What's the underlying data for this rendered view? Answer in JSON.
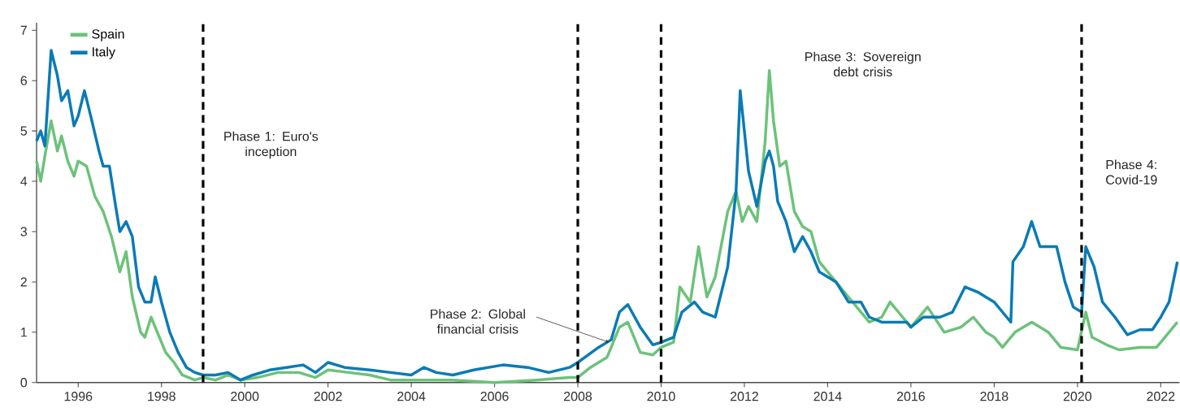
{
  "chart_data": {
    "type": "line",
    "xlim": [
      1995.0,
      2022.45
    ],
    "ylim": [
      0,
      7.15
    ],
    "xticks": [
      1996,
      1998,
      2000,
      2002,
      2004,
      2006,
      2008,
      2010,
      2012,
      2014,
      2016,
      2018,
      2020,
      2022
    ],
    "yticks": [
      0,
      1,
      2,
      3,
      4,
      5,
      6,
      7
    ],
    "legend": "top left",
    "grid": false,
    "line_style": "solid",
    "marker": "none",
    "series": [
      {
        "name": "Spain",
        "color": "#6cc27a",
        "x": [
          1995.0,
          1995.1,
          1995.2,
          1995.35,
          1995.5,
          1995.6,
          1995.75,
          1995.9,
          1996.0,
          1996.2,
          1996.4,
          1996.6,
          1996.8,
          1997.0,
          1997.15,
          1997.3,
          1997.5,
          1997.6,
          1997.75,
          1997.9,
          1998.1,
          1998.3,
          1998.5,
          1998.8,
          1999.0,
          1999.3,
          1999.6,
          1999.9,
          2000.3,
          2000.8,
          2001.3,
          2001.7,
          2002.0,
          2002.5,
          2003.0,
          2003.5,
          2004.0,
          2005.0,
          2006.0,
          2007.0,
          2007.8,
          2008.0,
          2008.3,
          2008.7,
          2009.0,
          2009.2,
          2009.5,
          2009.8,
          2010.0,
          2010.3,
          2010.45,
          2010.7,
          2010.9,
          2011.1,
          2011.3,
          2011.6,
          2011.8,
          2011.95,
          2012.1,
          2012.3,
          2012.5,
          2012.6,
          2012.7,
          2012.85,
          2013.0,
          2013.2,
          2013.4,
          2013.6,
          2013.8,
          2014.2,
          2014.5,
          2014.8,
          2015.0,
          2015.3,
          2015.5,
          2015.8,
          2016.0,
          2016.4,
          2016.8,
          2017.2,
          2017.5,
          2017.8,
          2018.0,
          2018.2,
          2018.5,
          2018.9,
          2019.3,
          2019.6,
          2020.0,
          2020.2,
          2020.35,
          2020.7,
          2021.0,
          2021.5,
          2021.9,
          2022.1,
          2022.4
        ],
        "values": [
          4.4,
          4.0,
          4.5,
          5.2,
          4.6,
          4.9,
          4.4,
          4.1,
          4.4,
          4.3,
          3.7,
          3.4,
          2.9,
          2.2,
          2.6,
          1.7,
          1.0,
          0.9,
          1.3,
          1.0,
          0.6,
          0.4,
          0.15,
          0.05,
          0.1,
          0.05,
          0.15,
          0.05,
          0.1,
          0.2,
          0.2,
          0.1,
          0.25,
          0.2,
          0.15,
          0.05,
          0.05,
          0.05,
          0.0,
          0.05,
          0.1,
          0.1,
          0.3,
          0.5,
          1.1,
          1.2,
          0.6,
          0.55,
          0.7,
          0.8,
          1.9,
          1.6,
          2.7,
          1.7,
          2.1,
          3.4,
          3.8,
          3.2,
          3.5,
          3.2,
          4.8,
          6.2,
          5.2,
          4.3,
          4.4,
          3.4,
          3.1,
          3.0,
          2.4,
          2.0,
          1.7,
          1.4,
          1.2,
          1.3,
          1.6,
          1.3,
          1.1,
          1.5,
          1.0,
          1.1,
          1.3,
          1.0,
          0.9,
          0.7,
          1.0,
          1.2,
          1.0,
          0.7,
          0.65,
          1.4,
          0.9,
          0.75,
          0.65,
          0.7,
          0.7,
          0.9,
          1.2
        ]
      },
      {
        "name": "Italy",
        "color": "#0a7bb4",
        "x": [
          1995.0,
          1995.1,
          1995.2,
          1995.35,
          1995.5,
          1995.6,
          1995.75,
          1995.9,
          1996.0,
          1996.15,
          1996.3,
          1996.5,
          1996.6,
          1996.75,
          1996.9,
          1997.0,
          1997.15,
          1997.3,
          1997.45,
          1997.6,
          1997.75,
          1997.85,
          1998.0,
          1998.2,
          1998.4,
          1998.6,
          1998.8,
          1999.0,
          1999.3,
          1999.6,
          1999.9,
          2000.2,
          2000.6,
          2001.0,
          2001.4,
          2001.7,
          2002.0,
          2002.4,
          2003.0,
          2003.5,
          2004.0,
          2004.3,
          2004.6,
          2005.0,
          2005.5,
          2006.2,
          2006.8,
          2007.3,
          2007.8,
          2008.0,
          2008.5,
          2008.8,
          2009.0,
          2009.2,
          2009.5,
          2009.8,
          2010.0,
          2010.3,
          2010.5,
          2010.8,
          2011.0,
          2011.3,
          2011.6,
          2011.8,
          2011.9,
          2012.0,
          2012.1,
          2012.3,
          2012.5,
          2012.6,
          2012.7,
          2012.8,
          2013.0,
          2013.2,
          2013.4,
          2013.6,
          2013.8,
          2014.2,
          2014.5,
          2014.8,
          2015.0,
          2015.3,
          2015.6,
          2015.9,
          2016.0,
          2016.3,
          2016.7,
          2017.0,
          2017.3,
          2017.6,
          2018.0,
          2018.3,
          2018.4,
          2018.45,
          2018.7,
          2018.9,
          2019.1,
          2019.5,
          2019.7,
          2019.9,
          2020.1,
          2020.2,
          2020.4,
          2020.6,
          2020.9,
          2021.2,
          2021.5,
          2021.8,
          2022.0,
          2022.2,
          2022.4
        ],
        "values": [
          4.8,
          5.0,
          4.7,
          6.6,
          6.1,
          5.6,
          5.8,
          5.1,
          5.3,
          5.8,
          5.3,
          4.6,
          4.3,
          4.3,
          3.5,
          3.0,
          3.2,
          2.9,
          1.9,
          1.6,
          1.6,
          2.1,
          1.6,
          1.0,
          0.6,
          0.3,
          0.2,
          0.15,
          0.15,
          0.2,
          0.05,
          0.15,
          0.25,
          0.3,
          0.35,
          0.2,
          0.4,
          0.3,
          0.25,
          0.2,
          0.15,
          0.3,
          0.2,
          0.15,
          0.25,
          0.35,
          0.3,
          0.2,
          0.3,
          0.4,
          0.7,
          0.85,
          1.4,
          1.55,
          1.1,
          0.75,
          0.8,
          0.9,
          1.4,
          1.6,
          1.4,
          1.3,
          2.3,
          3.8,
          5.8,
          5.0,
          4.2,
          3.5,
          4.4,
          4.6,
          4.3,
          3.6,
          3.2,
          2.6,
          2.9,
          2.6,
          2.2,
          2.0,
          1.6,
          1.6,
          1.3,
          1.2,
          1.2,
          1.2,
          1.1,
          1.3,
          1.3,
          1.4,
          1.9,
          1.8,
          1.6,
          1.3,
          1.2,
          2.4,
          2.7,
          3.2,
          2.7,
          2.7,
          2.0,
          1.5,
          1.4,
          2.7,
          2.3,
          1.6,
          1.3,
          0.95,
          1.05,
          1.05,
          1.3,
          1.6,
          2.4
        ]
      }
    ],
    "ref_lines": [
      {
        "axis": "x",
        "value": 1999.0,
        "color": "#000000",
        "line_style": "dashed"
      },
      {
        "axis": "x",
        "value": 2008.0,
        "color": "#000000",
        "line_style": "dashed"
      },
      {
        "axis": "x",
        "value": 2010.0,
        "color": "#000000",
        "line_style": "dashed"
      },
      {
        "axis": "x",
        "value": 2020.1,
        "color": "#000000",
        "line_style": "dashed"
      }
    ],
    "annotations": [
      "Phase 1: Euro's inception",
      {
        "text": "Phase 2: Global financial crisis",
        "x": 2008.75,
        "y": 0.8
      },
      "Phase 3: Sovereign debt crisis",
      "Phase 4: Covid-19"
    ]
  }
}
